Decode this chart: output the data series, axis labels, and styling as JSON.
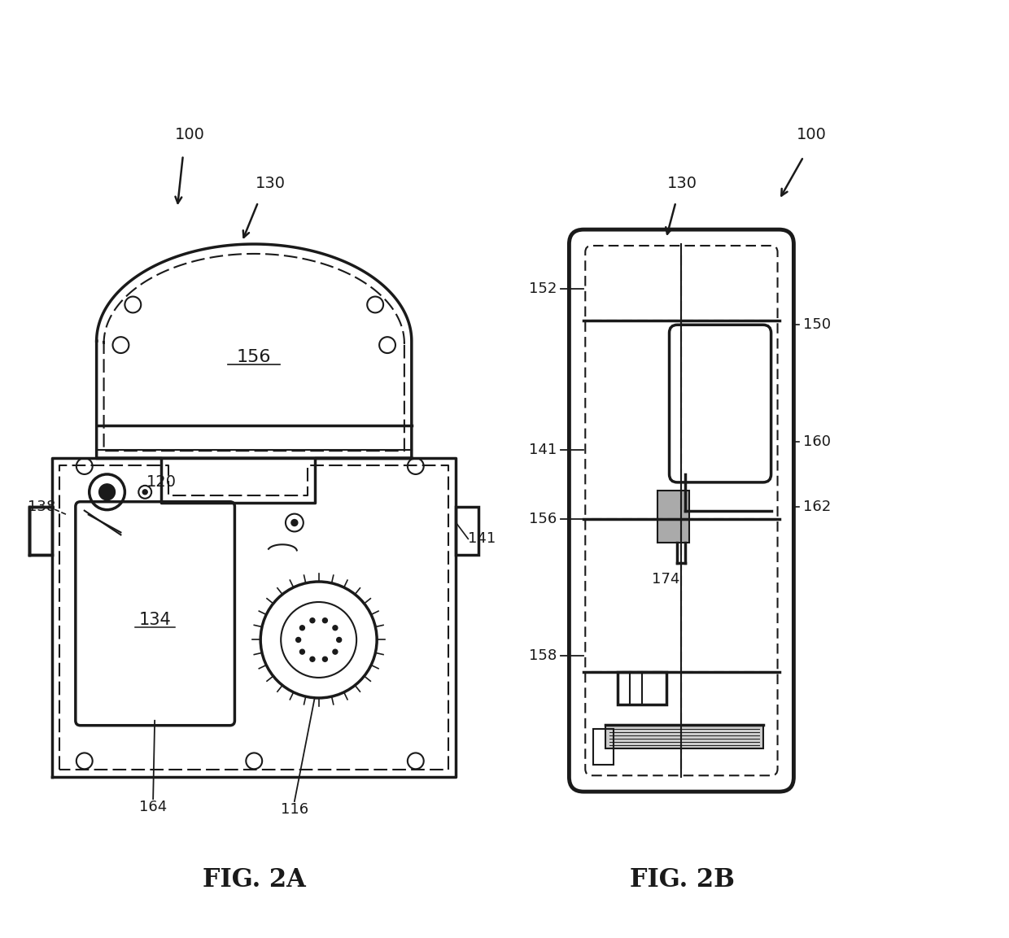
{
  "bg_color": "#ffffff",
  "line_color": "#1a1a1a",
  "fig_width": 12.4,
  "fig_height": 11.53
}
